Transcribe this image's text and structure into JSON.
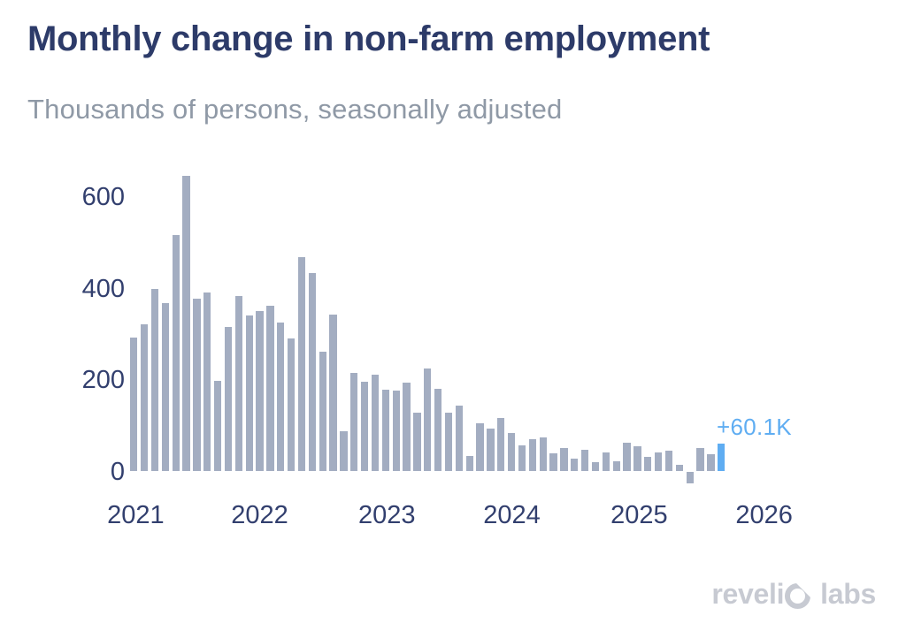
{
  "header": {
    "title": "Monthly change in non-farm employment",
    "subtitle": "Thousands of persons, seasonally adjusted"
  },
  "annotation": {
    "label": "+60.1K"
  },
  "logo": {
    "part1": "reveli",
    "o_icon": "revelio-o-mark",
    "part2": "labs",
    "full_text": "revelio labs"
  },
  "colors": {
    "bar": "#a3adc1",
    "highlight": "#5fadf2",
    "title": "#2d3b69",
    "subtitle": "#8f99a6",
    "axis": "#323f6e",
    "logo": "#c7cad2",
    "background": "#ffffff"
  },
  "chart_data": {
    "type": "bar",
    "title": "Monthly change in non-farm employment",
    "subtitle": "Thousands of persons, seasonally adjusted",
    "ylabel": "Thousands of persons",
    "xlabel": "",
    "grid": false,
    "legend": false,
    "ylim": [
      -60,
      680
    ],
    "yticks": [
      0,
      200,
      400,
      600
    ],
    "xtick_labels": [
      "2021",
      "2022",
      "2023",
      "2024",
      "2025",
      "2026"
    ],
    "x": [
      "2021-01",
      "2021-02",
      "2021-03",
      "2021-04",
      "2021-05",
      "2021-06",
      "2021-07",
      "2021-08",
      "2021-09",
      "2021-10",
      "2021-11",
      "2021-12",
      "2022-01",
      "2022-02",
      "2022-03",
      "2022-04",
      "2022-05",
      "2022-06",
      "2022-07",
      "2022-08",
      "2022-09",
      "2022-10",
      "2022-11",
      "2022-12",
      "2023-01",
      "2023-02",
      "2023-03",
      "2023-04",
      "2023-05",
      "2023-06",
      "2023-07",
      "2023-08",
      "2023-09",
      "2023-10",
      "2023-11",
      "2023-12",
      "2024-01",
      "2024-02",
      "2024-03",
      "2024-04",
      "2024-05",
      "2024-06",
      "2024-07",
      "2024-08",
      "2024-09",
      "2024-10",
      "2024-11",
      "2024-12",
      "2025-01",
      "2025-02",
      "2025-03",
      "2025-04",
      "2025-05",
      "2025-06",
      "2025-07",
      "2025-08",
      "2025-09"
    ],
    "values": [
      293,
      322,
      399,
      369,
      517,
      648,
      378,
      391,
      199,
      317,
      385,
      341,
      352,
      363,
      326,
      291,
      470,
      434,
      263,
      344,
      89,
      215,
      196,
      212,
      179,
      178,
      194,
      129,
      225,
      180,
      129,
      144,
      33,
      105,
      94,
      118,
      85,
      58,
      70,
      74,
      40,
      52,
      28,
      47,
      21,
      41,
      23,
      62,
      55,
      32,
      42,
      46,
      15,
      -27,
      52,
      37,
      60.1
    ],
    "highlight": {
      "index": 56,
      "x": "2025-09",
      "value": 60.1,
      "label": "+60.1K"
    }
  }
}
